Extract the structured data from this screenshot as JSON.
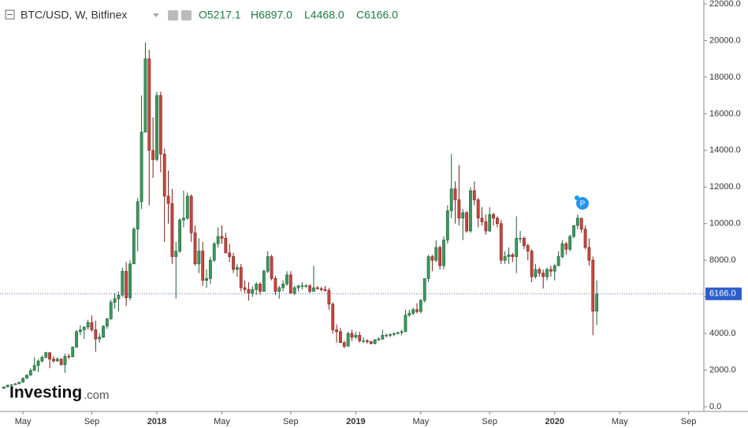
{
  "chart_data": {
    "type": "candlestick",
    "title": "BTC/USD, W, Bitfinex",
    "ohlc_labels": [
      "O5217.1",
      "H6897.0",
      "L4468.0",
      "C6166.0"
    ],
    "watermark": [
      "Investing",
      ".com"
    ],
    "annotation": "P",
    "last_price": {
      "value": 6166.0,
      "label": "6166.0"
    },
    "up_color": "#3c9a5f",
    "down_color": "#c8463f",
    "ylim": [
      0,
      22000
    ],
    "yticks": [
      {
        "value": 0,
        "label": "0.0"
      },
      {
        "value": 2000,
        "label": "2000.0"
      },
      {
        "value": 4000,
        "label": "4000.0"
      },
      {
        "value": 6000,
        "label": "6000.0"
      },
      {
        "value": 8000,
        "label": "8000.0"
      },
      {
        "value": 10000,
        "label": "10000.0"
      },
      {
        "value": 12000,
        "label": "12000.0"
      },
      {
        "value": 14000,
        "label": "14000.0"
      },
      {
        "value": 16000,
        "label": "16000.0"
      },
      {
        "value": 18000,
        "label": "18000.0"
      },
      {
        "value": 20000,
        "label": "20000.0"
      },
      {
        "value": 22000,
        "label": "22000.0"
      }
    ],
    "xlim": [
      -1,
      183
    ],
    "xticks": [
      {
        "value": 5,
        "label": "May"
      },
      {
        "value": 23,
        "label": "Sep"
      },
      {
        "value": 40,
        "label": "2018"
      },
      {
        "value": 57,
        "label": "May"
      },
      {
        "value": 75,
        "label": "Sep"
      },
      {
        "value": 92,
        "label": "2019"
      },
      {
        "value": 109,
        "label": "May"
      },
      {
        "value": 127,
        "label": "Sep"
      },
      {
        "value": 144,
        "label": "2020"
      },
      {
        "value": 161,
        "label": "May"
      },
      {
        "value": 179,
        "label": "Sep"
      }
    ],
    "candles": [
      [
        1000,
        1110,
        980,
        1080
      ],
      [
        1080,
        1200,
        1060,
        1180
      ],
      [
        1180,
        1230,
        1140,
        1200
      ],
      [
        1200,
        1290,
        1180,
        1250
      ],
      [
        1250,
        1360,
        1230,
        1340
      ],
      [
        1340,
        1600,
        1320,
        1550
      ],
      [
        1550,
        1780,
        1530,
        1720
      ],
      [
        1720,
        2100,
        1700,
        1980
      ],
      [
        1980,
        2700,
        1950,
        2250
      ],
      [
        2250,
        2600,
        1900,
        2500
      ],
      [
        2500,
        2800,
        2400,
        2700
      ],
      [
        2700,
        3000,
        2650,
        2950
      ],
      [
        2950,
        2980,
        2100,
        2600
      ],
      [
        2600,
        2780,
        2400,
        2500
      ],
      [
        2500,
        2700,
        2450,
        2600
      ],
      [
        2600,
        2650,
        2250,
        2300
      ],
      [
        2300,
        2900,
        1850,
        2750
      ],
      [
        2750,
        2900,
        2600,
        2730
      ],
      [
        2730,
        3300,
        2700,
        3250
      ],
      [
        3250,
        4200,
        3250,
        4100
      ],
      [
        4100,
        4450,
        3900,
        4200
      ],
      [
        4200,
        4400,
        3700,
        4350
      ],
      [
        4350,
        4750,
        4200,
        4600
      ],
      [
        4600,
        4980,
        4100,
        4200
      ],
      [
        4200,
        4700,
        3000,
        3700
      ],
      [
        3700,
        4000,
        3500,
        3800
      ],
      [
        3800,
        4450,
        3750,
        4400
      ],
      [
        4400,
        4850,
        4250,
        4800
      ],
      [
        4800,
        5850,
        4750,
        5700
      ],
      [
        5700,
        6200,
        5350,
        5900
      ],
      [
        5900,
        6300,
        5200,
        6100
      ],
      [
        6100,
        7600,
        6000,
        7400
      ],
      [
        7400,
        7900,
        5500,
        5950
      ],
      [
        5950,
        8000,
        5800,
        7800
      ],
      [
        7800,
        9800,
        7800,
        9700
      ],
      [
        9700,
        11400,
        8500,
        11200
      ],
      [
        11200,
        17000,
        10800,
        15000
      ],
      [
        15000,
        19900,
        15000,
        19000
      ],
      [
        19000,
        19500,
        11000,
        14000
      ],
      [
        14000,
        15800,
        12500,
        13500
      ],
      [
        13500,
        17200,
        13400,
        17000
      ],
      [
        17000,
        17200,
        12800,
        13800
      ],
      [
        13800,
        14100,
        9000,
        11500
      ],
      [
        11500,
        12900,
        10000,
        11100
      ],
      [
        11100,
        11900,
        7800,
        8200
      ],
      [
        8200,
        9000,
        5900,
        8500
      ],
      [
        8500,
        10300,
        8400,
        10200
      ],
      [
        10200,
        11800,
        9800,
        10300
      ],
      [
        10300,
        11700,
        10200,
        11500
      ],
      [
        11500,
        11600,
        9000,
        9500
      ],
      [
        9500,
        9900,
        7700,
        7800
      ],
      [
        7800,
        9200,
        7300,
        8500
      ],
      [
        8500,
        9000,
        6600,
        6900
      ],
      [
        6900,
        7500,
        6500,
        7000
      ],
      [
        7000,
        8200,
        6700,
        8000
      ],
      [
        8000,
        9000,
        7900,
        8900
      ],
      [
        8900,
        9800,
        8700,
        9300
      ],
      [
        9300,
        9900,
        8900,
        9200
      ],
      [
        9200,
        9500,
        8400,
        8400
      ],
      [
        8400,
        8900,
        7900,
        8200
      ],
      [
        8200,
        8400,
        7300,
        7500
      ],
      [
        7500,
        7800,
        7100,
        7600
      ],
      [
        7600,
        7800,
        6300,
        6500
      ],
      [
        6500,
        6900,
        6200,
        6400
      ],
      [
        6400,
        6800,
        5800,
        6200
      ],
      [
        6200,
        6600,
        6000,
        6400
      ],
      [
        6400,
        6800,
        6100,
        6700
      ],
      [
        6700,
        6800,
        6100,
        6300
      ],
      [
        6300,
        7500,
        6300,
        7400
      ],
      [
        7400,
        8500,
        7300,
        8200
      ],
      [
        8200,
        8300,
        6900,
        7000
      ],
      [
        7000,
        7150,
        6100,
        6300
      ],
      [
        6300,
        6600,
        5900,
        6500
      ],
      [
        6500,
        6900,
        6300,
        6700
      ],
      [
        6700,
        7400,
        6600,
        7200
      ],
      [
        7200,
        7400,
        6200,
        6200
      ],
      [
        6200,
        6600,
        6100,
        6500
      ],
      [
        6500,
        6650,
        6300,
        6600
      ],
      [
        6600,
        6800,
        6400,
        6600
      ],
      [
        6600,
        6700,
        6500,
        6600
      ],
      [
        6600,
        6700,
        6200,
        6300
      ],
      [
        6300,
        7700,
        6300,
        6500
      ],
      [
        6500,
        6600,
        6400,
        6450
      ],
      [
        6450,
        6550,
        6300,
        6400
      ],
      [
        6400,
        6600,
        6300,
        6350
      ],
      [
        6350,
        6500,
        5300,
        5600
      ],
      [
        5600,
        5700,
        4000,
        4200
      ],
      [
        4200,
        4500,
        3500,
        4100
      ],
      [
        4100,
        4300,
        3500,
        3500
      ],
      [
        3500,
        3600,
        3200,
        3300
      ],
      [
        3300,
        4100,
        3300,
        4000
      ],
      [
        4000,
        4200,
        3600,
        3800
      ],
      [
        3800,
        4100,
        3700,
        3900
      ],
      [
        3900,
        4100,
        3500,
        3600
      ],
      [
        3600,
        3800,
        3500,
        3600
      ],
      [
        3600,
        3700,
        3450,
        3550
      ],
      [
        3550,
        3600,
        3400,
        3450
      ],
      [
        3450,
        3700,
        3400,
        3650
      ],
      [
        3650,
        3800,
        3600,
        3700
      ],
      [
        3700,
        4200,
        3650,
        3900
      ],
      [
        3900,
        4000,
        3800,
        3900
      ],
      [
        3900,
        4000,
        3800,
        3950
      ],
      [
        3950,
        4050,
        3850,
        4000
      ],
      [
        4000,
        4100,
        3950,
        4050
      ],
      [
        4050,
        4200,
        3900,
        4100
      ],
      [
        4100,
        5300,
        4100,
        5000
      ],
      [
        5000,
        5300,
        4900,
        5100
      ],
      [
        5100,
        5400,
        5000,
        5300
      ],
      [
        5300,
        5650,
        5100,
        5200
      ],
      [
        5200,
        5900,
        5100,
        5800
      ],
      [
        5800,
        7000,
        5700,
        7000
      ],
      [
        7000,
        8300,
        6800,
        8200
      ],
      [
        8200,
        8300,
        7400,
        8000
      ],
      [
        8000,
        9100,
        7900,
        8700
      ],
      [
        8700,
        8800,
        7500,
        7700
      ],
      [
        7700,
        9300,
        7500,
        9100
      ],
      [
        9100,
        11000,
        8900,
        10700
      ],
      [
        10700,
        13800,
        10300,
        11900
      ],
      [
        11900,
        12300,
        10000,
        11300
      ],
      [
        11300,
        13200,
        9900,
        10300
      ],
      [
        10300,
        10800,
        9100,
        10600
      ],
      [
        10600,
        10700,
        9500,
        9600
      ],
      [
        9600,
        12000,
        9500,
        11800
      ],
      [
        11800,
        12300,
        11000,
        11300
      ],
      [
        11300,
        11400,
        9800,
        10300
      ],
      [
        10300,
        10900,
        9900,
        10100
      ],
      [
        10100,
        10500,
        9400,
        9600
      ],
      [
        9600,
        10900,
        9550,
        10500
      ],
      [
        10500,
        10600,
        9900,
        10300
      ],
      [
        10300,
        10400,
        9800,
        10000
      ],
      [
        10000,
        10200,
        7800,
        8000
      ],
      [
        8000,
        8500,
        7800,
        8200
      ],
      [
        8200,
        8700,
        7800,
        8300
      ],
      [
        8300,
        8400,
        7900,
        8200
      ],
      [
        8200,
        10400,
        7300,
        9200
      ],
      [
        9200,
        9600,
        8950,
        9200
      ],
      [
        9200,
        9300,
        8600,
        8800
      ],
      [
        8800,
        8900,
        8000,
        8500
      ],
      [
        8500,
        8600,
        6800,
        7100
      ],
      [
        7100,
        7800,
        7000,
        7500
      ],
      [
        7500,
        7600,
        7100,
        7300
      ],
      [
        7300,
        7500,
        6450,
        7100
      ],
      [
        7100,
        7600,
        6900,
        7500
      ],
      [
        7500,
        7700,
        7100,
        7400
      ],
      [
        7400,
        7800,
        6900,
        7700
      ],
      [
        7700,
        8500,
        7700,
        8200
      ],
      [
        8200,
        9100,
        8100,
        8900
      ],
      [
        8900,
        9000,
        8300,
        8600
      ],
      [
        8600,
        9400,
        8500,
        9300
      ],
      [
        9300,
        9900,
        9200,
        9900
      ],
      [
        9900,
        10500,
        9700,
        10300
      ],
      [
        10300,
        10300,
        9500,
        9700
      ],
      [
        9700,
        9900,
        8600,
        8700
      ],
      [
        8700,
        9200,
        7700,
        8000
      ],
      [
        8000,
        8200,
        3900,
        5217.1
      ],
      [
        5217.1,
        6897.0,
        4468.0,
        6166.0
      ]
    ]
  }
}
